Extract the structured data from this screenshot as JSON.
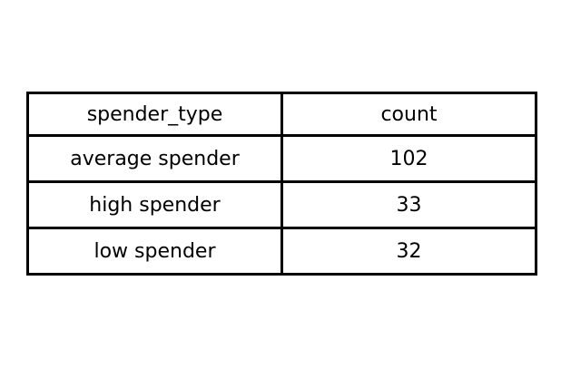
{
  "chart_data": {
    "type": "table",
    "columns": [
      "spender_type",
      "count"
    ],
    "rows": [
      [
        "average spender",
        102
      ],
      [
        "high spender",
        33
      ],
      [
        "low spender",
        32
      ]
    ]
  },
  "colors": {
    "border": "#000000",
    "text": "#000000",
    "background": "#ffffff"
  }
}
